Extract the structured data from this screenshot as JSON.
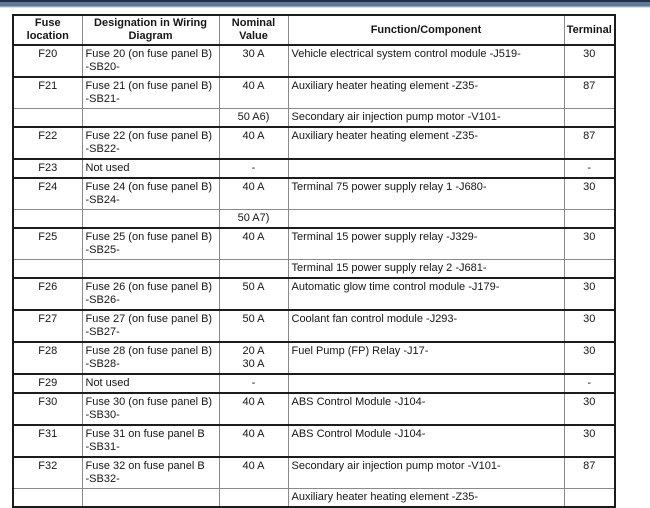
{
  "page": {
    "kind": "fuse-assignment-document"
  },
  "colors": {
    "top_bar_dark": "#223049",
    "top_bar_mid": "#5f7898",
    "top_bar_light": "#8fa5bd",
    "table_border_dark": "#1c1c1c",
    "table_border_light": "#8a8a8a",
    "text": "#161616",
    "background": "#ffffff"
  },
  "table": {
    "headers": [
      "Fuse location",
      "Designation in Wiring Diagram",
      "Nominal Value",
      "Function/Component",
      "Terminal"
    ],
    "rows": [
      {
        "fuse": "F20",
        "designation": [
          "Fuse 20 (on fuse panel B)",
          "-SB20-"
        ],
        "nominal": [
          "30 A"
        ],
        "function": "Vehicle electrical system control module -J519-",
        "terminal": "30",
        "group_start": true
      },
      {
        "fuse": "F21",
        "designation": [
          "Fuse 21 (on fuse panel B)",
          "-SB21-"
        ],
        "nominal": [
          "40 A"
        ],
        "function": "Auxiliary heater heating element -Z35-",
        "terminal": "87",
        "group_start": true
      },
      {
        "fuse": "",
        "designation": [
          ""
        ],
        "nominal": [
          "50 A6)"
        ],
        "function": "Secondary air injection pump motor -V101-",
        "terminal": "",
        "group_start": false
      },
      {
        "fuse": "F22",
        "designation": [
          "Fuse 22 (on fuse panel B)",
          "-SB22-"
        ],
        "nominal": [
          "40 A"
        ],
        "function": "Auxiliary heater heating element -Z35-",
        "terminal": "87",
        "group_start": true
      },
      {
        "fuse": "F23",
        "designation": [
          "Not used"
        ],
        "nominal": [
          "-"
        ],
        "function": "",
        "terminal": "-",
        "group_start": true
      },
      {
        "fuse": "F24",
        "designation": [
          "Fuse 24 (on fuse panel B)",
          "-SB24-"
        ],
        "nominal": [
          "40 A"
        ],
        "function": "Terminal 75 power supply relay 1 -J680-",
        "terminal": "30",
        "group_start": true
      },
      {
        "fuse": "",
        "designation": [
          ""
        ],
        "nominal": [
          "50 A7)"
        ],
        "function": "",
        "terminal": "",
        "group_start": false
      },
      {
        "fuse": "F25",
        "designation": [
          "Fuse 25 (on fuse panel B)",
          "-SB25-"
        ],
        "nominal": [
          "40 A"
        ],
        "function": "Terminal 15 power supply relay -J329-",
        "terminal": "30",
        "group_start": true
      },
      {
        "fuse": "",
        "designation": [
          ""
        ],
        "nominal": [
          ""
        ],
        "function": "Terminal 15 power supply relay 2 -J681-",
        "terminal": "",
        "group_start": false
      },
      {
        "fuse": "F26",
        "designation": [
          "Fuse 26 (on fuse panel B)",
          "-SB26-"
        ],
        "nominal": [
          "50 A"
        ],
        "function": "Automatic glow time control module -J179-",
        "terminal": "30",
        "group_start": true
      },
      {
        "fuse": "F27",
        "designation": [
          "Fuse 27 (on fuse panel B)",
          "-SB27-"
        ],
        "nominal": [
          "50 A"
        ],
        "function": "Coolant fan control module -J293-",
        "terminal": "30",
        "group_start": true
      },
      {
        "fuse": "F28",
        "designation": [
          "Fuse 28 (on fuse panel B)",
          "-SB28-"
        ],
        "nominal": [
          "20 A",
          "30 A"
        ],
        "function": "Fuel Pump (FP) Relay -J17-",
        "terminal": "30",
        "group_start": true
      },
      {
        "fuse": "F29",
        "designation": [
          "Not used"
        ],
        "nominal": [
          "-"
        ],
        "function": "",
        "terminal": "-",
        "group_start": true
      },
      {
        "fuse": "F30",
        "designation": [
          "Fuse 30 (on fuse panel B)",
          "-SB30-"
        ],
        "nominal": [
          "40 A"
        ],
        "function": "ABS Control Module -J104-",
        "terminal": "30",
        "group_start": true
      },
      {
        "fuse": "F31",
        "designation": [
          "Fuse 31 on fuse panel B",
          "-SB31-"
        ],
        "nominal": [
          "40 A"
        ],
        "function": "ABS Control Module -J104-",
        "terminal": "30",
        "group_start": true
      },
      {
        "fuse": "F32",
        "designation": [
          "Fuse 32 on fuse panel B",
          "-SB32-"
        ],
        "nominal": [
          "40 A"
        ],
        "function": "Secondary air injection pump motor -V101-",
        "terminal": "87",
        "group_start": true
      },
      {
        "fuse": "",
        "designation": [
          ""
        ],
        "nominal": [
          ""
        ],
        "function": "Auxiliary heater heating element -Z35-",
        "terminal": "",
        "group_start": false
      }
    ]
  }
}
